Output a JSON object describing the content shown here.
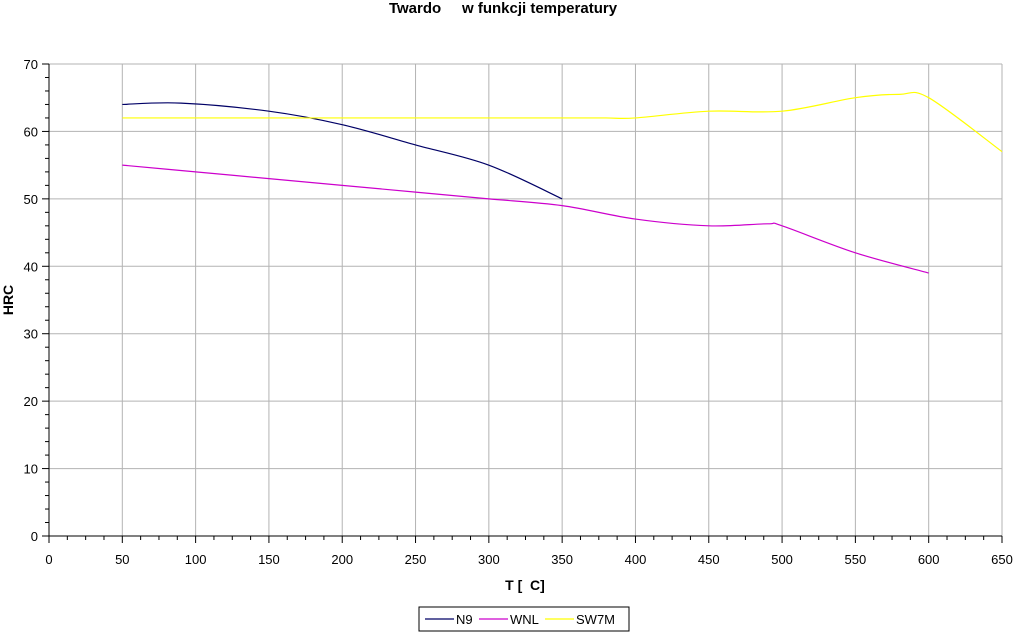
{
  "chart_data": {
    "type": "line",
    "title": "Twardo     w funkcji temperatury",
    "xlabel": "T [  C]",
    "ylabel": "HRC",
    "xlim": [
      0,
      650
    ],
    "ylim": [
      0,
      70
    ],
    "x_ticks": [
      0,
      50,
      100,
      150,
      200,
      250,
      300,
      350,
      400,
      450,
      500,
      550,
      600,
      650
    ],
    "y_ticks": [
      0,
      10,
      20,
      30,
      40,
      50,
      60,
      70
    ],
    "grid": true,
    "legend_position": "bottom-center",
    "series": [
      {
        "name": "N9",
        "color": "#000066",
        "x": [
          50,
          90,
          150,
          200,
          250,
          300,
          350
        ],
        "y": [
          64,
          64.2,
          63,
          61,
          58,
          55,
          50
        ]
      },
      {
        "name": "WNL",
        "color": "#cc00cc",
        "x": [
          50,
          100,
          150,
          200,
          250,
          300,
          350,
          400,
          450,
          490,
          500,
          550,
          600
        ],
        "y": [
          55,
          54,
          53,
          52,
          51,
          50,
          49,
          47,
          46,
          46.3,
          46,
          42,
          39
        ]
      },
      {
        "name": "SW7M",
        "color": "#ffff00",
        "x": [
          50,
          100,
          150,
          200,
          250,
          300,
          350,
          380,
          400,
          450,
          500,
          550,
          580,
          600,
          650
        ],
        "y": [
          62,
          62,
          62,
          62,
          62,
          62,
          62,
          62,
          62,
          63,
          63,
          65,
          65.5,
          65,
          57
        ]
      }
    ]
  }
}
